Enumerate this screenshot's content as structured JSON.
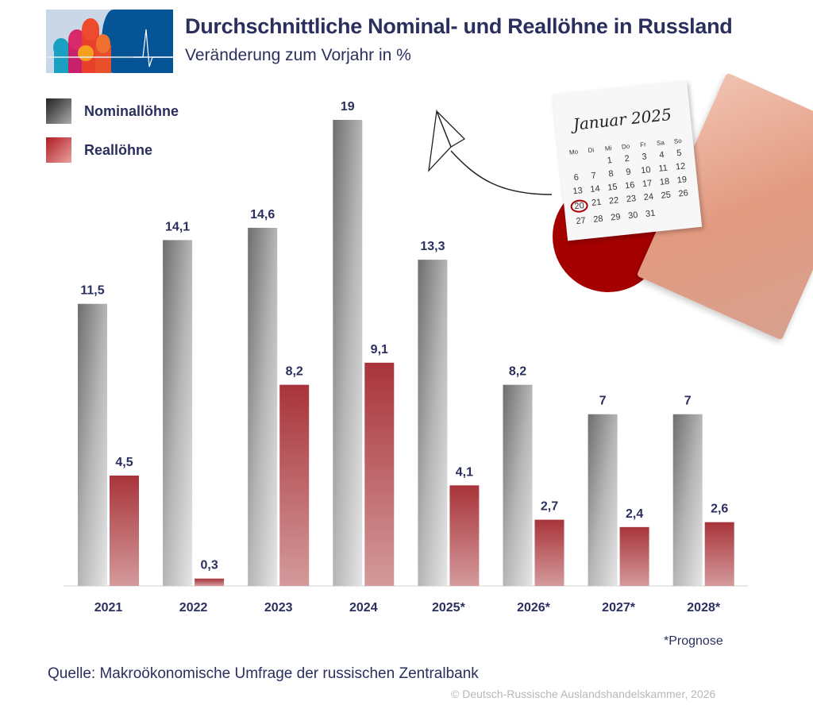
{
  "header": {
    "title": "Durchschnittliche Nominal- und Reallöhne in Russland",
    "subtitle": "Veränderung zum Vorjahr in %"
  },
  "calendar": {
    "month": "Januar 2025",
    "weekdays": [
      "Mo",
      "Di",
      "Mi",
      "Do",
      "Fr",
      "Sa",
      "So"
    ],
    "days": [
      "",
      "",
      "1",
      "2",
      "3",
      "4",
      "5",
      "6",
      "7",
      "8",
      "9",
      "10",
      "11",
      "12",
      "13",
      "14",
      "15",
      "16",
      "17",
      "18",
      "19",
      "20",
      "21",
      "22",
      "23",
      "24",
      "25",
      "26",
      "27",
      "28",
      "29",
      "30",
      "31"
    ],
    "highlighted_day": "20"
  },
  "chart_data": {
    "type": "bar",
    "title": "Durchschnittliche Nominal- und Reallöhne in Russland",
    "subtitle": "Veränderung zum Vorjahr in %",
    "categories": [
      "2021",
      "2022",
      "2023",
      "2024",
      "2025*",
      "2026*",
      "2027*",
      "2028*"
    ],
    "series": [
      {
        "name": "Nominallöhne",
        "values": [
          11.5,
          14.1,
          14.6,
          19,
          13.3,
          8.2,
          7,
          7
        ],
        "labels": [
          "11,5",
          "14,1",
          "14,6",
          "19",
          "13,3",
          "8,2",
          "7",
          "7"
        ],
        "color": "#8a8a8a"
      },
      {
        "name": "Reallöhne",
        "values": [
          4.5,
          0.3,
          8.2,
          9.1,
          4.1,
          2.7,
          2.4,
          2.6
        ],
        "labels": [
          "4,5",
          "0,3",
          "8,2",
          "9,1",
          "4,1",
          "2,7",
          "2,4",
          "2,6"
        ],
        "color": "#b0464b"
      }
    ],
    "ylim": [
      0,
      19
    ],
    "grid": false,
    "legend": "top-left",
    "xlabel": "",
    "ylabel": ""
  },
  "footnote": "*Prognose",
  "source": "Quelle: Makroökonomische Umfrage der russischen Zentralbank",
  "copyright": "© Deutsch-Russische Auslandshandelskammer, 2026",
  "colors": {
    "title": "#2b2f5e",
    "accent_red": "#a40000",
    "logo_blue": "#045496"
  }
}
